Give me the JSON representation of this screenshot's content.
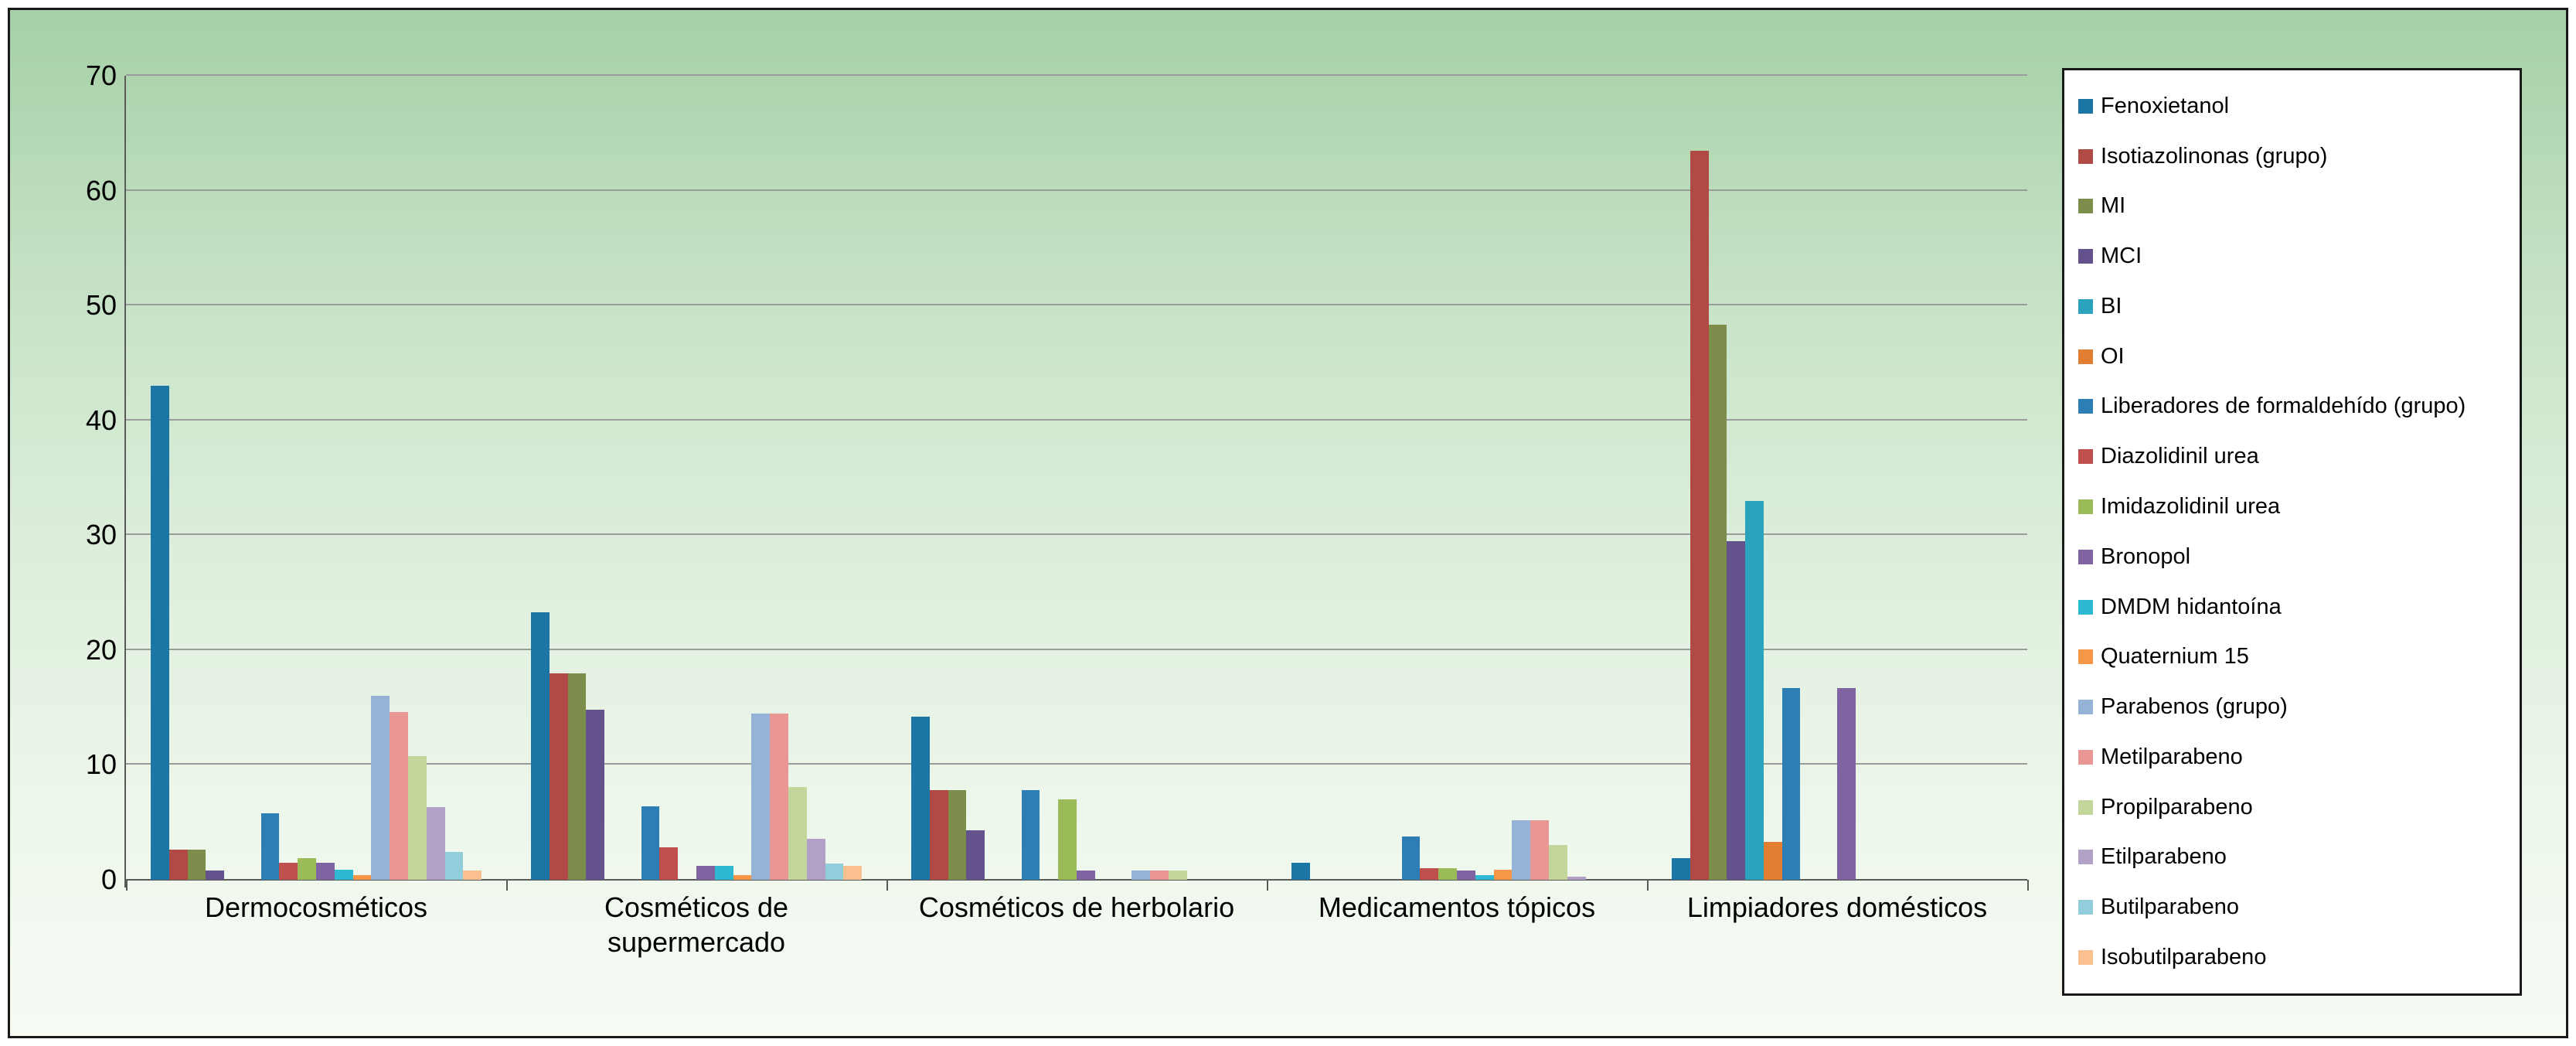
{
  "chart_data": {
    "type": "bar",
    "title": "",
    "xlabel": "",
    "ylabel": "",
    "ylim": [
      0,
      70
    ],
    "yticks": [
      0,
      10,
      20,
      30,
      40,
      50,
      60,
      70
    ],
    "grid": true,
    "legend_position": "right",
    "background": "green gradient, light at bottom",
    "categories": [
      "Dermocosméticos",
      "Cosméticos de supermercado",
      "Cosméticos de herbolario",
      "Medicamentos tópicos",
      "Limpiadores domésticos"
    ],
    "series": [
      {
        "name": "Fenoxietanol",
        "color": "#1b75a5",
        "values": [
          43,
          23.3,
          14.2,
          1.5,
          1.9
        ]
      },
      {
        "name": "Isotiazolinonas (grupo)",
        "color": "#b04a45",
        "values": [
          2.6,
          18,
          7.8,
          0,
          63.5
        ]
      },
      {
        "name": "MI",
        "color": "#7d8d4c",
        "values": [
          2.6,
          18,
          7.8,
          0,
          48.3
        ]
      },
      {
        "name": "MCI",
        "color": "#64528d",
        "values": [
          0.8,
          14.8,
          4.3,
          0,
          29.5
        ]
      },
      {
        "name": "BI",
        "color": "#2ba3bd",
        "values": [
          0,
          0,
          0,
          0,
          33
        ]
      },
      {
        "name": "OI",
        "color": "#e17e32",
        "values": [
          0,
          0,
          0,
          0,
          3.3
        ]
      },
      {
        "name": "Liberadores de formaldehído (grupo)",
        "color": "#2d7eb5",
        "values": [
          5.8,
          6.4,
          7.8,
          3.8,
          16.7
        ]
      },
      {
        "name": "Diazolidinil urea",
        "color": "#c0504d",
        "values": [
          1.5,
          2.8,
          0,
          1.0,
          0
        ]
      },
      {
        "name": "Imidazolidinil urea",
        "color": "#9bbb59",
        "values": [
          1.9,
          0,
          7.0,
          1.0,
          0
        ]
      },
      {
        "name": "Bronopol",
        "color": "#8064a2",
        "values": [
          1.5,
          1.2,
          0.8,
          0.8,
          16.7
        ]
      },
      {
        "name": "DMDM hidantoína",
        "color": "#2fb8d1",
        "values": [
          0.9,
          1.2,
          0,
          0.4,
          0
        ]
      },
      {
        "name": "Quaternium 15",
        "color": "#f79646",
        "values": [
          0.4,
          0.4,
          0,
          0.9,
          0
        ]
      },
      {
        "name": "Parabenos (grupo)",
        "color": "#95b3d7",
        "values": [
          16,
          14.5,
          0.8,
          5.2,
          0
        ]
      },
      {
        "name": "Metilparabeno",
        "color": "#e99694",
        "values": [
          14.6,
          14.5,
          0.8,
          5.2,
          0
        ]
      },
      {
        "name": "Propilparabeno",
        "color": "#c3d69b",
        "values": [
          10.8,
          8.1,
          0.8,
          3.0,
          0
        ]
      },
      {
        "name": "Etilparabeno",
        "color": "#b2a1c7",
        "values": [
          6.3,
          3.6,
          0,
          0.3,
          0
        ]
      },
      {
        "name": "Butilparabeno",
        "color": "#92cddc",
        "values": [
          2.4,
          1.4,
          0,
          0,
          0
        ]
      },
      {
        "name": "Isobutilparabeno",
        "color": "#fac08f",
        "values": [
          0.8,
          1.2,
          0,
          0,
          0
        ]
      }
    ]
  }
}
